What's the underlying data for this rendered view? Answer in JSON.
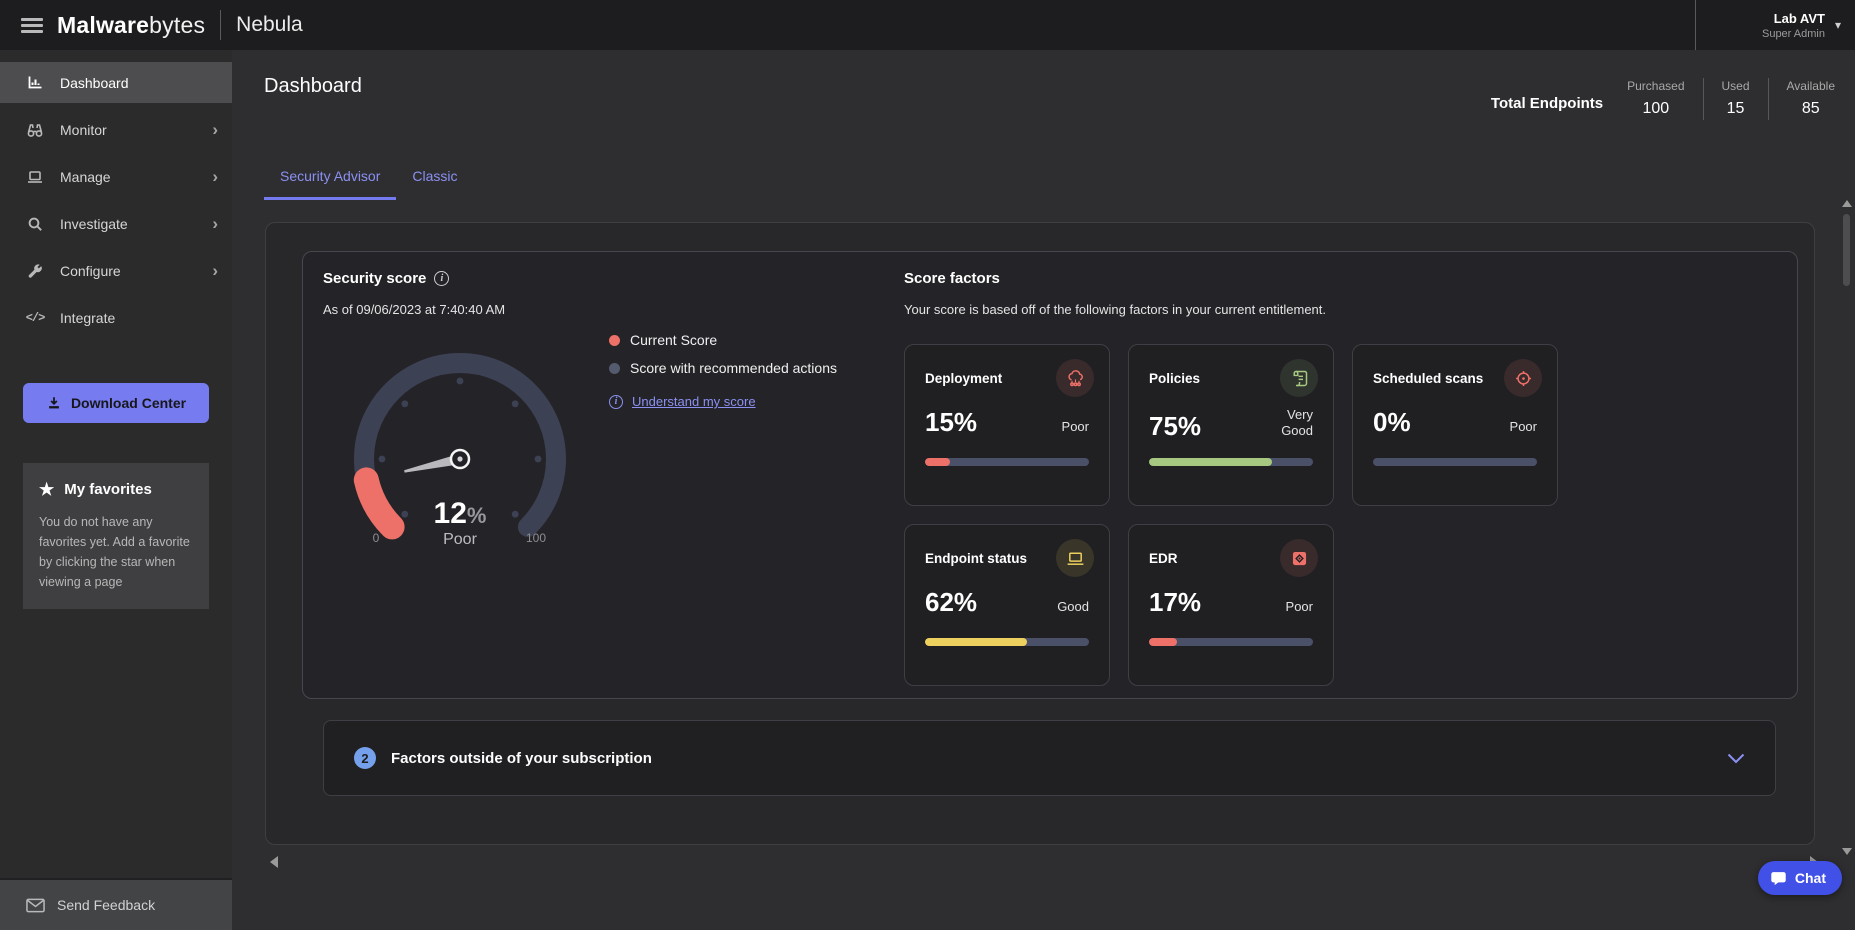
{
  "topbar": {
    "brand_bold": "Malware",
    "brand_light": "bytes",
    "product": "Nebula",
    "account_name": "Lab AVT",
    "account_role": "Super Admin"
  },
  "sidebar": {
    "items": [
      {
        "label": "Dashboard",
        "icon": "bar-chart-icon",
        "active": true,
        "chevron": ""
      },
      {
        "label": "Monitor",
        "icon": "binoculars-icon",
        "active": false,
        "chevron": "›"
      },
      {
        "label": "Manage",
        "icon": "laptop-icon",
        "active": false,
        "chevron": "›"
      },
      {
        "label": "Investigate",
        "icon": "search-icon",
        "active": false,
        "chevron": "›"
      },
      {
        "label": "Configure",
        "icon": "wrench-icon",
        "active": false,
        "chevron": "›"
      },
      {
        "label": "Integrate",
        "icon": "code-icon",
        "active": false,
        "chevron": "",
        "glyph": "</>"
      }
    ],
    "download_button": "Download Center",
    "favorites": {
      "title": "My favorites",
      "body": "You do not have any favorites yet. Add a favorite by clicking the star when viewing a page"
    },
    "feedback": "Send Feedback"
  },
  "header": {
    "title": "Dashboard",
    "endpoints_label": "Total Endpoints",
    "stats": [
      {
        "label": "Purchased",
        "value": "100"
      },
      {
        "label": "Used",
        "value": "15"
      },
      {
        "label": "Available",
        "value": "85"
      }
    ]
  },
  "tabs": [
    {
      "label": "Security Advisor",
      "active": true
    },
    {
      "label": "Classic",
      "active": false
    }
  ],
  "security_score": {
    "title": "Security score",
    "as_of": "As of 09/06/2023 at 7:40:40 AM",
    "legend": [
      {
        "label": "Current Score",
        "color": "#ed7169"
      },
      {
        "label": "Score with recommended actions",
        "color": "#555b6e"
      }
    ],
    "link": "Understand my score",
    "gauge": {
      "value": 12,
      "value_label": "12",
      "percent_sign": "%",
      "status": "Poor",
      "min": "0",
      "max": "100",
      "track_color": "#3d4154",
      "value_color": "#ed7169"
    }
  },
  "score_factors": {
    "title": "Score factors",
    "subtitle": "Your score is based off of the following factors in your current entitlement.",
    "cards": [
      {
        "name": "Deployment",
        "percent": "15%",
        "value": 15,
        "status": "Poor",
        "color": "#ed7169",
        "icon": "deployment-cloud-icon"
      },
      {
        "name": "Policies",
        "percent": "75%",
        "value": 75,
        "status": "Very Good",
        "color": "#a7c881",
        "icon": "policy-scroll-icon"
      },
      {
        "name": "Scheduled scans",
        "percent": "0%",
        "value": 0,
        "status": "Poor",
        "color": "#ed7169",
        "icon": "scan-target-icon"
      },
      {
        "name": "Endpoint status",
        "percent": "62%",
        "value": 62,
        "status": "Good",
        "color": "#eed05e",
        "icon": "endpoint-laptop-icon"
      },
      {
        "name": "EDR",
        "percent": "17%",
        "value": 17,
        "status": "Poor",
        "color": "#ed7169",
        "icon": "edr-box-icon"
      }
    ]
  },
  "factors_outside": {
    "count": "2",
    "label": "Factors outside of your subscription"
  },
  "chat": {
    "label": "Chat"
  }
}
